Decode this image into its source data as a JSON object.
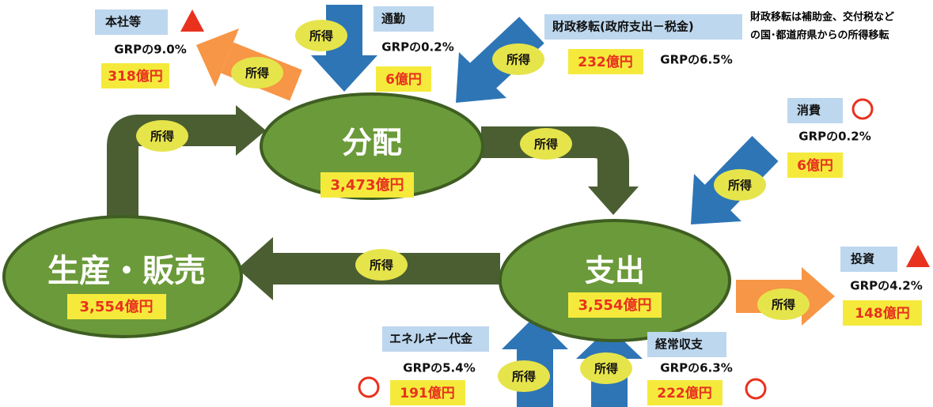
{
  "nodes": [
    {
      "label": "分配",
      "value": "3,473億円"
    },
    {
      "label": "支出",
      "value": "3,554億円"
    },
    {
      "label": "生産・販売",
      "value": "3,554億円"
    }
  ],
  "flows": [
    {
      "label": "所得"
    },
    {
      "label": "所得"
    },
    {
      "label": "所得"
    },
    {
      "label": "所得"
    },
    {
      "label": "所得"
    },
    {
      "label": "所得"
    },
    {
      "label": "所得"
    },
    {
      "label": "所得"
    },
    {
      "label": "所得"
    },
    {
      "label": "所得"
    }
  ],
  "items": [
    {
      "label": "本社等",
      "share": "GRPの9.0%",
      "value": "318億円"
    },
    {
      "label": "通勤",
      "share": "GRPの0.2%",
      "value": "6億円"
    },
    {
      "label": "財政移転(政府支出－税金)",
      "share": "GRPの6.5%",
      "value": "232億円"
    },
    {
      "label": "消費",
      "share": "GRPの0.2%",
      "value": "6億円"
    },
    {
      "label": "投資",
      "share": "GRPの4.2%",
      "value": "148億円"
    },
    {
      "label": "エネルギー代金",
      "share": "GRPの5.4%",
      "value": "191億円"
    },
    {
      "label": "経常収支",
      "share": "GRPの6.3%",
      "value": "222億円"
    }
  ],
  "note": [
    "財政移転は補助金、交付税など",
    "の国･都道府県からの所得移転"
  ]
}
